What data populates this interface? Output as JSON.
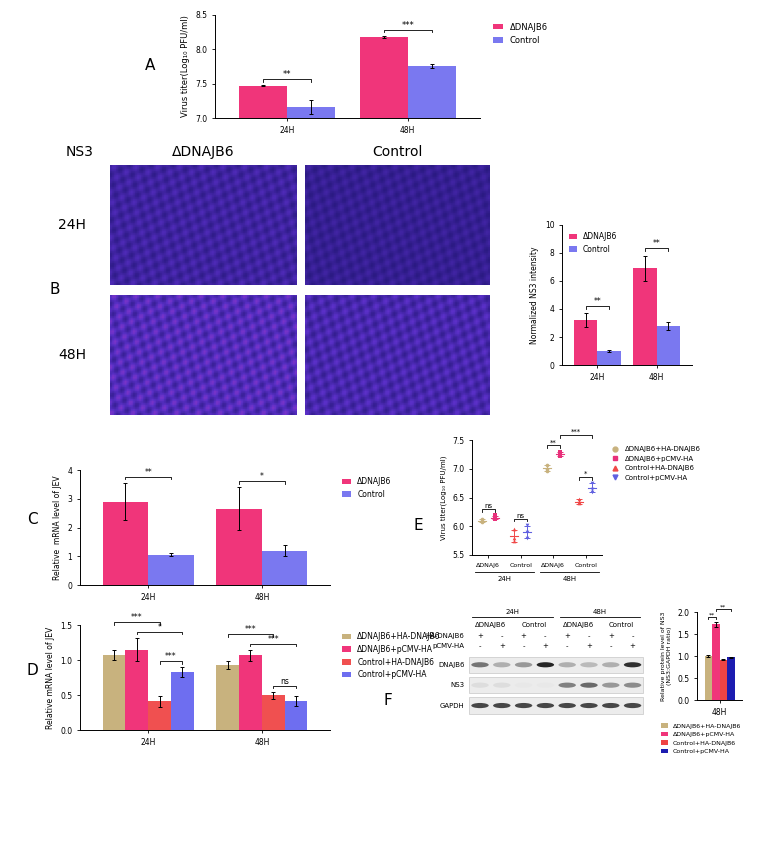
{
  "chart_data": [
    {
      "type": "bar",
      "panel": "A",
      "y_label": "Virus titer(Log₁₀ PFU/ml)",
      "categories": [
        "24H",
        "48H"
      ],
      "series": [
        {
          "name": "ΔDNAJB6",
          "color": "#f0357a",
          "values": [
            7.47,
            8.18
          ],
          "errors": [
            0.01,
            0.02
          ]
        },
        {
          "name": "Control",
          "color": "#7a78f0",
          "values": [
            7.16,
            7.76
          ],
          "errors": [
            0.1,
            0.03
          ]
        }
      ],
      "ylim": [
        7.0,
        8.5
      ],
      "yticks": [
        {
          "value": 7.0,
          "label": "7.0"
        },
        {
          "value": 7.5,
          "label": "7.5"
        },
        {
          "value": 8.0,
          "label": "8.0"
        },
        {
          "value": 8.5,
          "label": "8.5"
        }
      ],
      "legend": "outside right",
      "annotations": [
        {
          "from": [
            0,
            0
          ],
          "to": [
            0,
            1
          ],
          "text": "**"
        },
        {
          "from": [
            1,
            0
          ],
          "to": [
            1,
            1
          ],
          "text": "***"
        }
      ]
    },
    {
      "type": "image",
      "panel": "B",
      "title": "NS3",
      "columns": [
        "ΔDNAJB6",
        "Control"
      ],
      "rows": [
        "24H",
        "48H"
      ]
    },
    {
      "type": "bar",
      "y_label": "Normalized NS3 intensity",
      "categories": [
        "24H",
        "48H"
      ],
      "series": [
        {
          "name": "ΔDNAJB6",
          "color": "#f0357a",
          "values": [
            3.2,
            6.9
          ],
          "errors": [
            0.5,
            0.9
          ]
        },
        {
          "name": "Control",
          "color": "#7a78f0",
          "values": [
            1.0,
            2.8
          ],
          "errors": [
            0.1,
            0.3
          ]
        }
      ],
      "ylim": [
        0,
        10
      ],
      "yticks": [
        0,
        2,
        4,
        6,
        8,
        10
      ],
      "legend": "upper left",
      "annotations": [
        {
          "from": [
            0,
            0
          ],
          "to": [
            0,
            1
          ],
          "text": "**"
        },
        {
          "from": [
            1,
            0
          ],
          "to": [
            1,
            1
          ],
          "text": "**"
        }
      ]
    },
    {
      "type": "bar",
      "panel": "C",
      "y_label": "Relative  mRNA level of JEV",
      "categories": [
        "24H",
        "48H"
      ],
      "series": [
        {
          "name": "ΔDNAJB6",
          "color": "#f0357a",
          "values": [
            2.9,
            2.65
          ],
          "errors": [
            0.65,
            0.75
          ]
        },
        {
          "name": "Control",
          "color": "#7a78f0",
          "values": [
            1.05,
            1.2
          ],
          "errors": [
            0.05,
            0.2
          ]
        }
      ],
      "ylim": [
        0,
        4
      ],
      "yticks": [
        0,
        1,
        2,
        3,
        4
      ],
      "legend": "outside right",
      "annotations": [
        {
          "from": [
            0,
            0
          ],
          "to": [
            0,
            1
          ],
          "text": "**"
        },
        {
          "from": [
            1,
            0
          ],
          "to": [
            1,
            1
          ],
          "text": "*"
        }
      ]
    },
    {
      "type": "bar",
      "panel": "D",
      "y_label": "Relative mRNA level of JEV",
      "categories": [
        "24H",
        "48H"
      ],
      "series": [
        {
          "name": "ΔDNAJB6+HA-DNAJB6",
          "color": "#c8b27e",
          "values": [
            1.07,
            0.93
          ],
          "errors": [
            0.07,
            0.06
          ]
        },
        {
          "name": "ΔDNAJB6+pCMV-HA",
          "color": "#f0357a",
          "values": [
            1.15,
            1.07
          ],
          "errors": [
            0.17,
            0.08
          ]
        },
        {
          "name": "Control+HA-DNAJB6",
          "color": "#f05050",
          "values": [
            0.41,
            0.5
          ],
          "errors": [
            0.08,
            0.05
          ]
        },
        {
          "name": "Control+pCMV-HA",
          "color": "#6e6ef0",
          "values": [
            0.83,
            0.42
          ],
          "errors": [
            0.07,
            0.07
          ]
        }
      ],
      "ylim": [
        0,
        1.5
      ],
      "yticks": [
        {
          "value": 0,
          "label": "0.0"
        },
        {
          "value": 0.5,
          "label": "0.5"
        },
        {
          "value": 1.0,
          "label": "1.0"
        },
        {
          "value": 1.5,
          "label": "1.5"
        }
      ],
      "legend": "outside right",
      "annotations": [
        {
          "from": [
            0,
            2
          ],
          "to": [
            0,
            3
          ],
          "text": "***"
        },
        {
          "from": [
            0,
            1
          ],
          "to": [
            0,
            3
          ],
          "text": "*"
        },
        {
          "from": [
            0,
            0
          ],
          "to": [
            0,
            2
          ],
          "text": "***"
        },
        {
          "from": [
            1,
            2
          ],
          "to": [
            1,
            3
          ],
          "text": "ns"
        },
        {
          "from": [
            1,
            1
          ],
          "to": [
            1,
            3
          ],
          "text": "***"
        },
        {
          "from": [
            1,
            0
          ],
          "to": [
            1,
            2
          ],
          "text": "***"
        }
      ]
    },
    {
      "type": "dot",
      "panel": "E",
      "y_label": "Virus titer(Log₁₀ PFU/ml)",
      "categories": [
        "ΔDNAJ6",
        "Control",
        "ΔDNAJ6",
        "Control"
      ],
      "groups": [
        {
          "label": "24H",
          "categories": [
            0,
            1
          ]
        },
        {
          "label": "48H",
          "categories": [
            2,
            3
          ]
        }
      ],
      "series": [
        {
          "name": "ΔDNAJB6+HA-DNAJB6",
          "color": "#c8b27e",
          "marker": "circle",
          "points": [
            [
              6.1,
              6.12,
              6.08
            ],
            null,
            [
              7.0,
              7.06,
              6.96
            ],
            null
          ],
          "mean": [
            6.1,
            null,
            7.01,
            null
          ],
          "errors": [
            0.02,
            null,
            0.05,
            null
          ]
        },
        {
          "name": "ΔDNAJB6+pCMV-HA",
          "color": "#e8307a",
          "marker": "square",
          "points": [
            [
              6.15,
              6.19,
              6.12
            ],
            null,
            [
              7.25,
              7.3,
              7.22
            ],
            null
          ],
          "mean": [
            6.15,
            null,
            7.26,
            null
          ],
          "errors": [
            0.03,
            null,
            0.04,
            null
          ]
        },
        {
          "name": "Control+HA-DNAJB6",
          "color": "#f04848",
          "marker": "triangle_up",
          "points": [
            null,
            [
              5.8,
              5.95,
              5.75
            ],
            null,
            [
              6.42,
              6.48,
              6.4
            ]
          ],
          "mean": [
            null,
            5.83,
            null,
            6.43
          ],
          "errors": [
            null,
            0.1,
            null,
            0.04
          ]
        },
        {
          "name": "Control+pCMV-HA",
          "color": "#6060e0",
          "marker": "triangle_down",
          "points": [
            null,
            [
              5.9,
              6.02,
              5.8
            ],
            null,
            [
              6.65,
              6.75,
              6.6
            ]
          ],
          "mean": [
            null,
            5.9,
            null,
            6.67
          ],
          "errors": [
            null,
            0.11,
            null,
            0.08
          ]
        }
      ],
      "ylim": [
        5.5,
        7.5
      ],
      "yticks": [
        {
          "value": 5.5,
          "label": "5.5"
        },
        {
          "value": 6.0,
          "label": "6.0"
        },
        {
          "value": 6.5,
          "label": "6.5"
        },
        {
          "value": 7.0,
          "label": "7.0"
        },
        {
          "value": 7.5,
          "label": "7.5"
        }
      ],
      "legend": "outside right",
      "annotations": [
        {
          "from": [
            0,
            0
          ],
          "to": [
            0,
            1
          ],
          "text": "ns"
        },
        {
          "from": [
            1,
            2
          ],
          "to": [
            1,
            3
          ],
          "text": "ns"
        },
        {
          "from": [
            2,
            0
          ],
          "to": [
            2,
            1
          ],
          "text": "**"
        },
        {
          "from": [
            3,
            2
          ],
          "to": [
            3,
            3
          ],
          "text": "*"
        },
        {
          "from": [
            2,
            1
          ],
          "to": [
            3,
            3
          ],
          "text": "***"
        }
      ]
    },
    {
      "type": "western_blot",
      "panel": "F",
      "timepoints": [
        "24H",
        "48H"
      ],
      "groups": [
        "ΔDNAJB6",
        "Control",
        "ΔDNAJB6",
        "Control"
      ],
      "treatments": [
        {
          "name": "HA-DNAJB6",
          "marks": [
            "+",
            "-",
            "+",
            "-",
            "+",
            "-",
            "+",
            "-"
          ]
        },
        {
          "name": "pCMV-HA",
          "marks": [
            "-",
            "+",
            "-",
            "+",
            "-",
            "+",
            "-",
            "+"
          ]
        }
      ],
      "rows": [
        {
          "name": "DNAJB6",
          "intensity": [
            0.6,
            0.35,
            0.45,
            0.95,
            0.35,
            0.3,
            0.35,
            0.9
          ]
        },
        {
          "name": "NS3",
          "intensity": [
            0.15,
            0.15,
            0.1,
            0.1,
            0.55,
            0.65,
            0.45,
            0.5
          ]
        },
        {
          "name": "GAPDH",
          "intensity": [
            0.8,
            0.8,
            0.8,
            0.8,
            0.8,
            0.8,
            0.8,
            0.8
          ]
        }
      ]
    },
    {
      "type": "bar",
      "y_label": "Relative protein level of NS3\n(NS3:GAPDH ratio)",
      "categories": [
        "48H"
      ],
      "series": [
        {
          "name": "ΔDNAJB6+HA-DNAJB6",
          "color": "#c8b27e",
          "values": [
            1.0
          ],
          "errors": [
            0.02
          ]
        },
        {
          "name": "ΔDNAJB6+pCMV-HA",
          "color": "#f0357a",
          "values": [
            1.72
          ],
          "errors": [
            0.05
          ]
        },
        {
          "name": "Control+HA-DNAJB6",
          "color": "#ef4444",
          "values": [
            0.92
          ],
          "errors": [
            0.01
          ]
        },
        {
          "name": "Control+pCMV-HA",
          "color": "#1c1cb0",
          "values": [
            0.97
          ],
          "errors": [
            0.01
          ]
        }
      ],
      "ylim": [
        0,
        2.0
      ],
      "yticks": [
        {
          "value": 0,
          "label": "0.0"
        },
        {
          "value": 0.5,
          "label": "0.5"
        },
        {
          "value": 1.0,
          "label": "1.0"
        },
        {
          "value": 1.5,
          "label": "1.5"
        },
        {
          "value": 2.0,
          "label": "2.0"
        }
      ],
      "legend": "outside bottom",
      "annotations": [
        {
          "from": [
            0,
            0
          ],
          "to": [
            0,
            1
          ],
          "text": "**"
        },
        {
          "from": [
            0,
            1
          ],
          "to": [
            0,
            3
          ],
          "text": "**"
        }
      ]
    }
  ]
}
